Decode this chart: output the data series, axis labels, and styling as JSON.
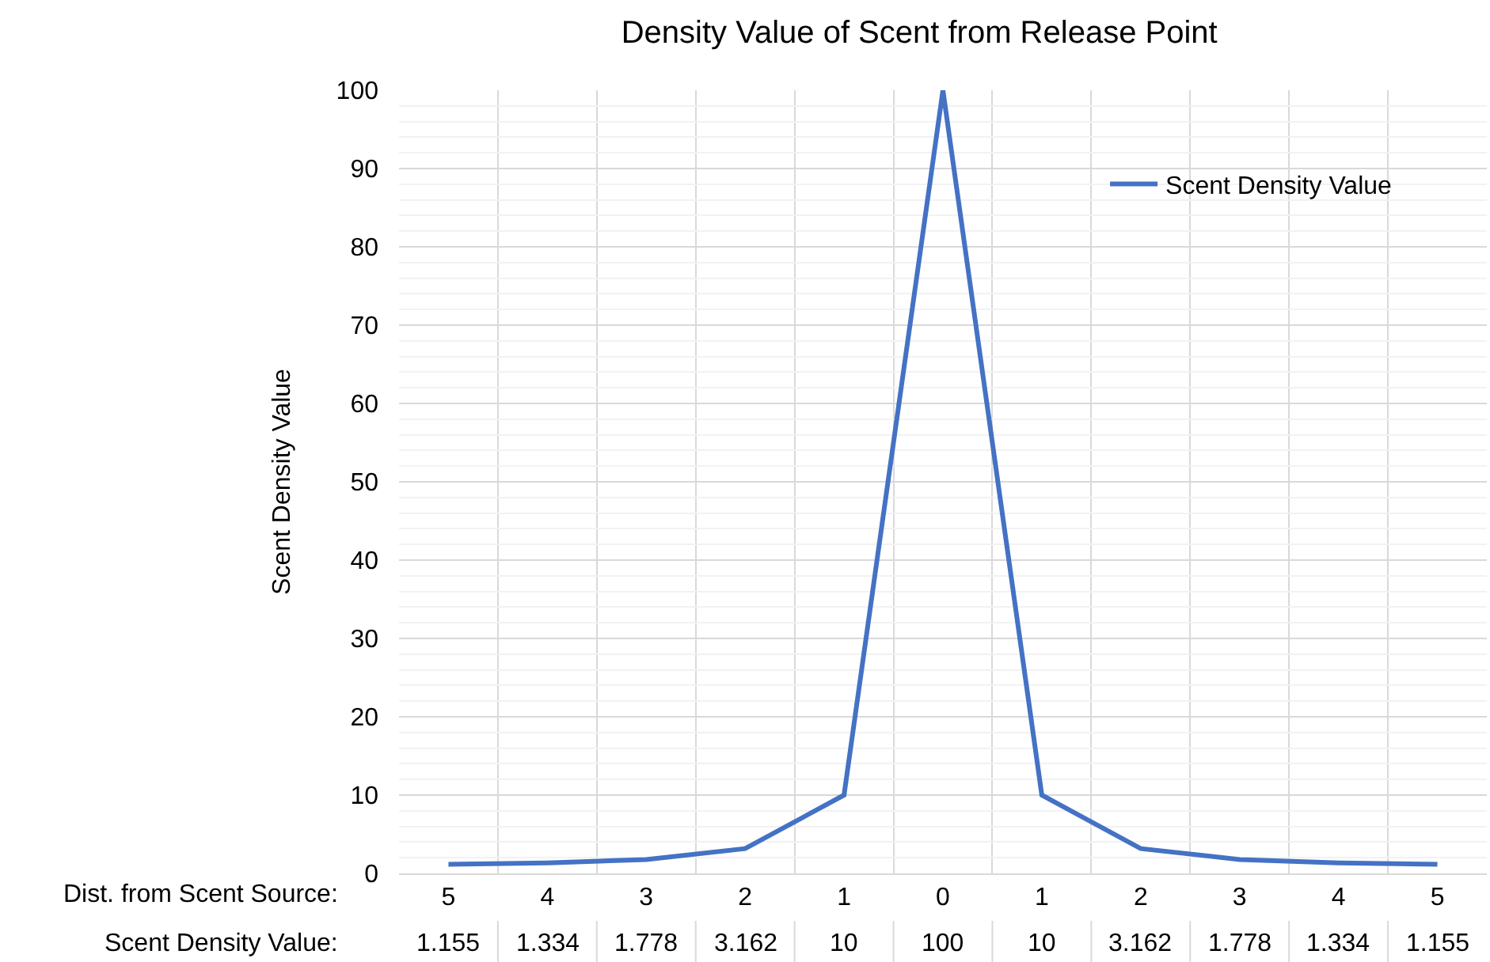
{
  "chart_data": {
    "type": "line",
    "title": "Density Value of Scent from Release Point",
    "ylabel": "Scent Density Value",
    "categories": [
      "5",
      "4",
      "3",
      "2",
      "1",
      "0",
      "1",
      "2",
      "3",
      "4",
      "5"
    ],
    "series": [
      {
        "name": "Scent Density Value",
        "color": "#4472c4",
        "values": [
          1.155,
          1.334,
          1.778,
          3.162,
          10,
          100,
          10,
          3.162,
          1.778,
          1.334,
          1.155
        ]
      }
    ],
    "ylim": [
      0,
      100
    ],
    "yticks": [
      0,
      10,
      20,
      30,
      40,
      50,
      60,
      70,
      80,
      90,
      100
    ],
    "grid": true,
    "legend": "top right",
    "data_labels": true,
    "line_style": "solid",
    "annotations": [
      "Dist. from Scent Source:",
      "Scent Density Value:"
    ]
  }
}
